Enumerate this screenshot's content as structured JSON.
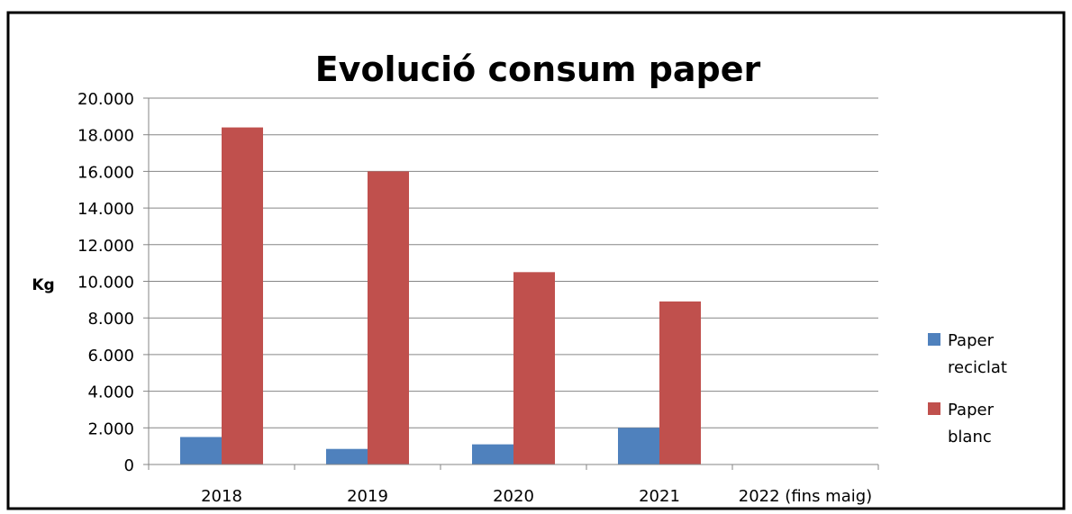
{
  "chart_data": {
    "type": "bar",
    "title": "Evolució consum paper",
    "xlabel": "",
    "ylabel": "Kg",
    "categories": [
      "2018",
      "2019",
      "2020",
      "2021",
      "2022 (fins maig)"
    ],
    "series": [
      {
        "name": "Paper reciclat",
        "name_lines": [
          "Paper",
          "reciclat"
        ],
        "color": "#4f81bd",
        "values": [
          1500,
          850,
          1100,
          2000,
          0
        ]
      },
      {
        "name": "Paper blanc",
        "name_lines": [
          "Paper",
          "blanc"
        ],
        "color": "#c0504d",
        "values": [
          18400,
          16000,
          10500,
          8900,
          0
        ]
      }
    ],
    "ylim": [
      0,
      20000
    ],
    "yticks": [
      0,
      2000,
      4000,
      6000,
      8000,
      10000,
      12000,
      14000,
      16000,
      18000,
      20000
    ],
    "ytick_labels": [
      "0",
      "2.000",
      "4.000",
      "6.000",
      "8.000",
      "10.000",
      "12.000",
      "14.000",
      "16.000",
      "18.000",
      "20.000"
    ],
    "grid": true,
    "legend_position": "right"
  }
}
